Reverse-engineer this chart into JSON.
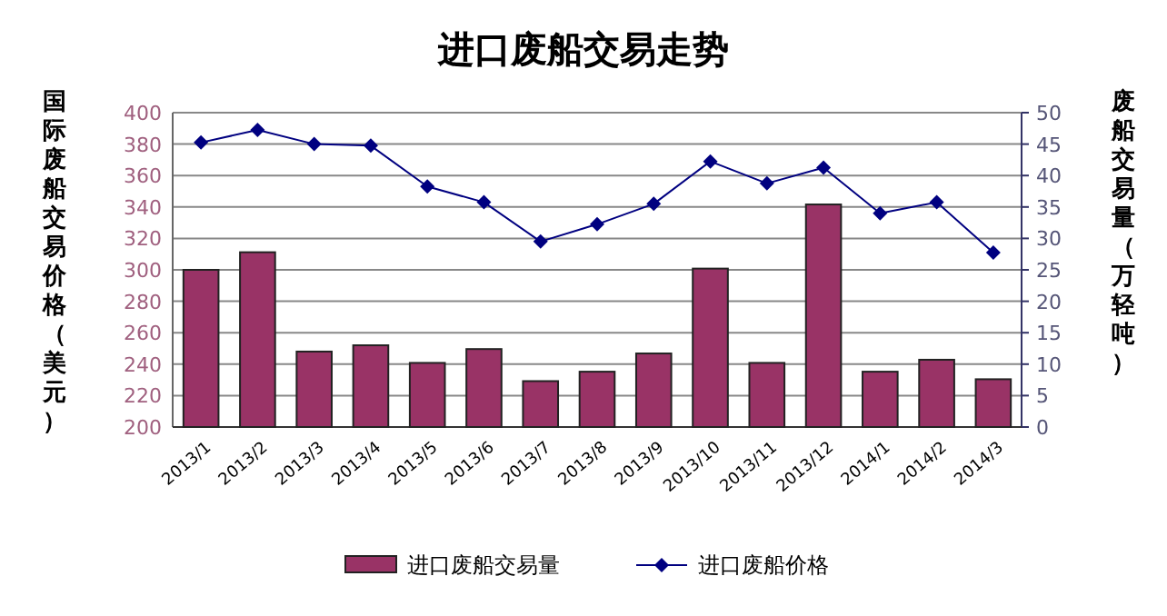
{
  "chart_data": {
    "type": "bar",
    "title": "进口废船交易走势",
    "ylabel": "国际废船交易价格（美元）",
    "y2label": "废船交易量（万轻吨）",
    "categories": [
      "2013/1",
      "2013/2",
      "2013/3",
      "2013/4",
      "2013/5",
      "2013/6",
      "2013/7",
      "2013/8",
      "2013/9",
      "2013/10",
      "2013/11",
      "2013/12",
      "2014/1",
      "2014/2",
      "2014/3"
    ],
    "series": [
      {
        "name": "进口废船交易量",
        "type": "bar",
        "axis": "y2",
        "color": "#993366",
        "values": [
          25,
          27.8,
          12,
          13,
          10.2,
          12.4,
          7.3,
          8.8,
          11.7,
          25.2,
          10.2,
          35.4,
          8.8,
          10.7,
          7.6
        ]
      },
      {
        "name": "进口废船价格",
        "type": "line",
        "axis": "y",
        "color": "#000080",
        "marker": "diamond",
        "values": [
          381,
          389,
          380,
          379,
          353,
          343,
          318,
          329,
          342,
          369,
          355,
          365,
          336,
          343,
          311
        ]
      }
    ],
    "ylim": [
      200,
      400
    ],
    "yticks": [
      200,
      220,
      240,
      260,
      280,
      300,
      320,
      340,
      360,
      380,
      400
    ],
    "y2lim": [
      0,
      50
    ],
    "y2ticks": [
      0,
      5,
      10,
      15,
      20,
      25,
      30,
      35,
      40,
      45,
      50
    ],
    "grid": "y",
    "legend": "bottom"
  }
}
